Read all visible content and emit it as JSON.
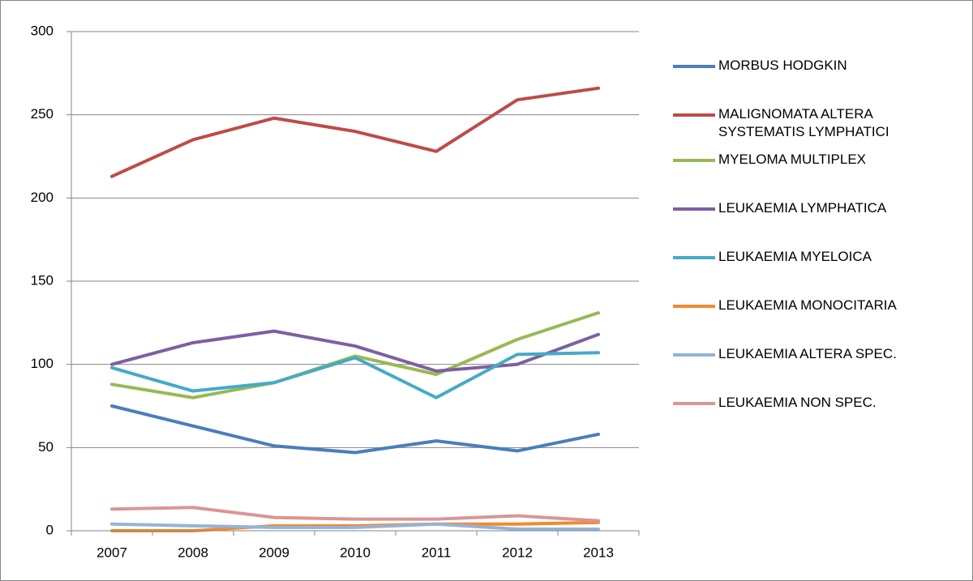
{
  "chart_data": {
    "type": "line",
    "categories": [
      "2007",
      "2008",
      "2009",
      "2010",
      "2011",
      "2012",
      "2013"
    ],
    "series": [
      {
        "name": "MORBUS HODGKIN",
        "color": "#4a7ebb",
        "values": [
          75,
          63,
          51,
          47,
          54,
          48,
          58
        ]
      },
      {
        "name": "MALIGNOMATA ALTERA SYSTEMATIS LYMPHATICI",
        "color": "#be4b48",
        "values": [
          213,
          235,
          248,
          240,
          228,
          259,
          266
        ]
      },
      {
        "name": "MYELOMA MULTIPLEX",
        "color": "#98b954",
        "values": [
          88,
          80,
          89,
          105,
          94,
          115,
          131
        ]
      },
      {
        "name": "LEUKAEMIA LYMPHATICA",
        "color": "#7d60a0",
        "values": [
          100,
          113,
          120,
          111,
          96,
          100,
          118
        ]
      },
      {
        "name": "LEUKAEMIA MYELOICA",
        "color": "#46aac5",
        "values": [
          98,
          84,
          89,
          104,
          80,
          106,
          107
        ]
      },
      {
        "name": "LEUKAEMIA MONOCITARIA",
        "color": "#f38a2c",
        "values": [
          0,
          0,
          3,
          3,
          4,
          4,
          5
        ]
      },
      {
        "name": "LEUKAEMIA ALTERA SPEC.",
        "color": "#95b3d7",
        "values": [
          4,
          3,
          2,
          2,
          4,
          1,
          1
        ]
      },
      {
        "name": "LEUKAEMIA NON SPEC.",
        "color": "#d99694",
        "values": [
          13,
          14,
          8,
          7,
          7,
          9,
          6
        ]
      }
    ],
    "ylim": [
      0,
      300
    ],
    "yticks": [
      0,
      50,
      100,
      150,
      200,
      250,
      300
    ],
    "grid": true,
    "legend": "right"
  }
}
